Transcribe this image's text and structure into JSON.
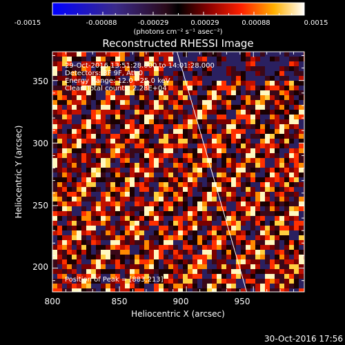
{
  "chart_data": {
    "type": "heatmap",
    "title": "Reconstructed RHESSI Image",
    "xlabel": "Heliocentric X (arcsec)",
    "ylabel": "Heliocentric Y (arcsec)",
    "xlim": [
      800,
      988
    ],
    "ylim": [
      181,
      373
    ],
    "x_ticks": [
      800,
      850,
      900,
      950
    ],
    "y_ticks": [
      200,
      250,
      300,
      350
    ],
    "colorbar": {
      "colormap": "black-red-yellow-white with blue negative",
      "range": [
        -0.0015,
        0.0015
      ],
      "tick_labels": [
        "-0.0015",
        "-0.00088",
        "-0.00029",
        "0.00029",
        "0.00088",
        "0.0015"
      ],
      "unit_label": "(photons cm⁻² s⁻¹ asec⁻²)"
    },
    "annotations": {
      "time": "29-Oct-2016 13:51:28.000 to 14:01:28.000",
      "detectors": "Detectors: 3F 9F, Att 0",
      "energy": "Energy Range: 12.0 - 25.0 keV",
      "method": "Clean     Total counts: 2.28E+04",
      "peak": "Position of Peak = [883,213]"
    },
    "limb_line": {
      "x": [
        893,
        945
      ],
      "y": [
        373,
        181
      ]
    }
  },
  "footer": {
    "timestamp": "30-Oct-2016 17:56"
  }
}
